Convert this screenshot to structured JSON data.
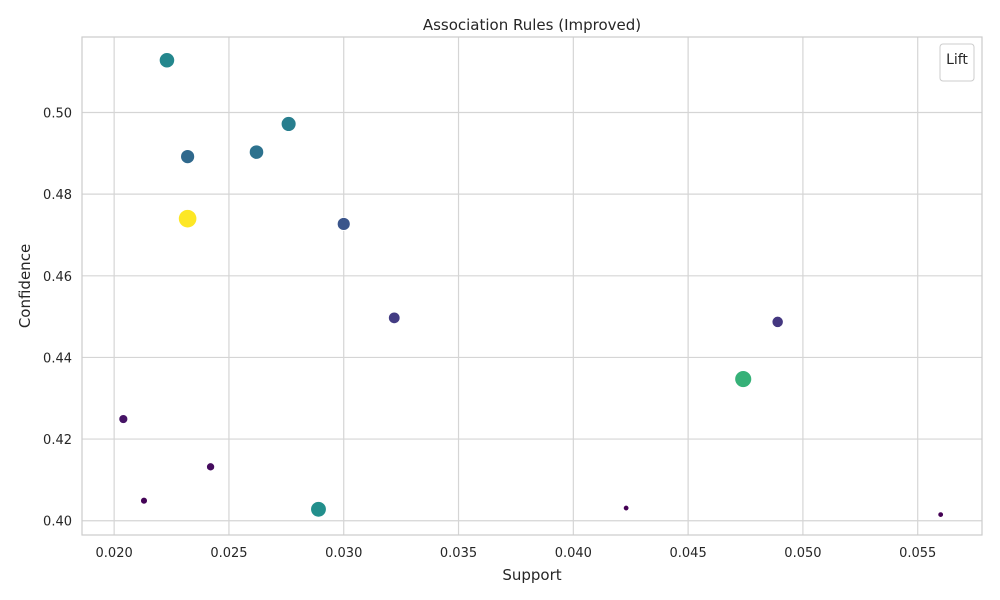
{
  "chart_data": {
    "type": "scatter",
    "title": "Association Rules (Improved)",
    "xlabel": "Support",
    "ylabel": "Confidence",
    "xlim": [
      0.0186,
      0.0578
    ],
    "ylim": [
      0.3965,
      0.5185
    ],
    "xticks": [
      0.02,
      0.025,
      0.03,
      0.035,
      0.04,
      0.045,
      0.05,
      0.055
    ],
    "xtick_labels": [
      "0.020",
      "0.025",
      "0.030",
      "0.035",
      "0.040",
      "0.045",
      "0.050",
      "0.055"
    ],
    "yticks": [
      0.4,
      0.42,
      0.44,
      0.46,
      0.48,
      0.5
    ],
    "ytick_labels": [
      "0.40",
      "0.42",
      "0.44",
      "0.46",
      "0.48",
      "0.50"
    ],
    "grid": true,
    "legend": {
      "title": "Lift",
      "placement": "top-right"
    },
    "size_and_color_encode": "lift",
    "color_map": "viridis",
    "lift_range": [
      0,
      1
    ],
    "points": [
      {
        "x": 0.0223,
        "y": 0.5128,
        "lift": 0.58
      },
      {
        "x": 0.0276,
        "y": 0.4972,
        "lift": 0.53
      },
      {
        "x": 0.0262,
        "y": 0.4903,
        "lift": 0.47
      },
      {
        "x": 0.0232,
        "y": 0.4892,
        "lift": 0.43
      },
      {
        "x": 0.0232,
        "y": 0.474,
        "lift": 1.0
      },
      {
        "x": 0.03,
        "y": 0.4727,
        "lift": 0.33
      },
      {
        "x": 0.0322,
        "y": 0.4497,
        "lift": 0.22
      },
      {
        "x": 0.0489,
        "y": 0.4487,
        "lift": 0.2
      },
      {
        "x": 0.0474,
        "y": 0.4347,
        "lift": 0.78
      },
      {
        "x": 0.0204,
        "y": 0.4249,
        "lift": 0.07
      },
      {
        "x": 0.0242,
        "y": 0.4132,
        "lift": 0.04
      },
      {
        "x": 0.0213,
        "y": 0.4049,
        "lift": 0.01
      },
      {
        "x": 0.0289,
        "y": 0.4028,
        "lift": 0.62
      },
      {
        "x": 0.0423,
        "y": 0.4031,
        "lift": 0.0
      },
      {
        "x": 0.056,
        "y": 0.4015,
        "lift": 0.0
      }
    ]
  }
}
